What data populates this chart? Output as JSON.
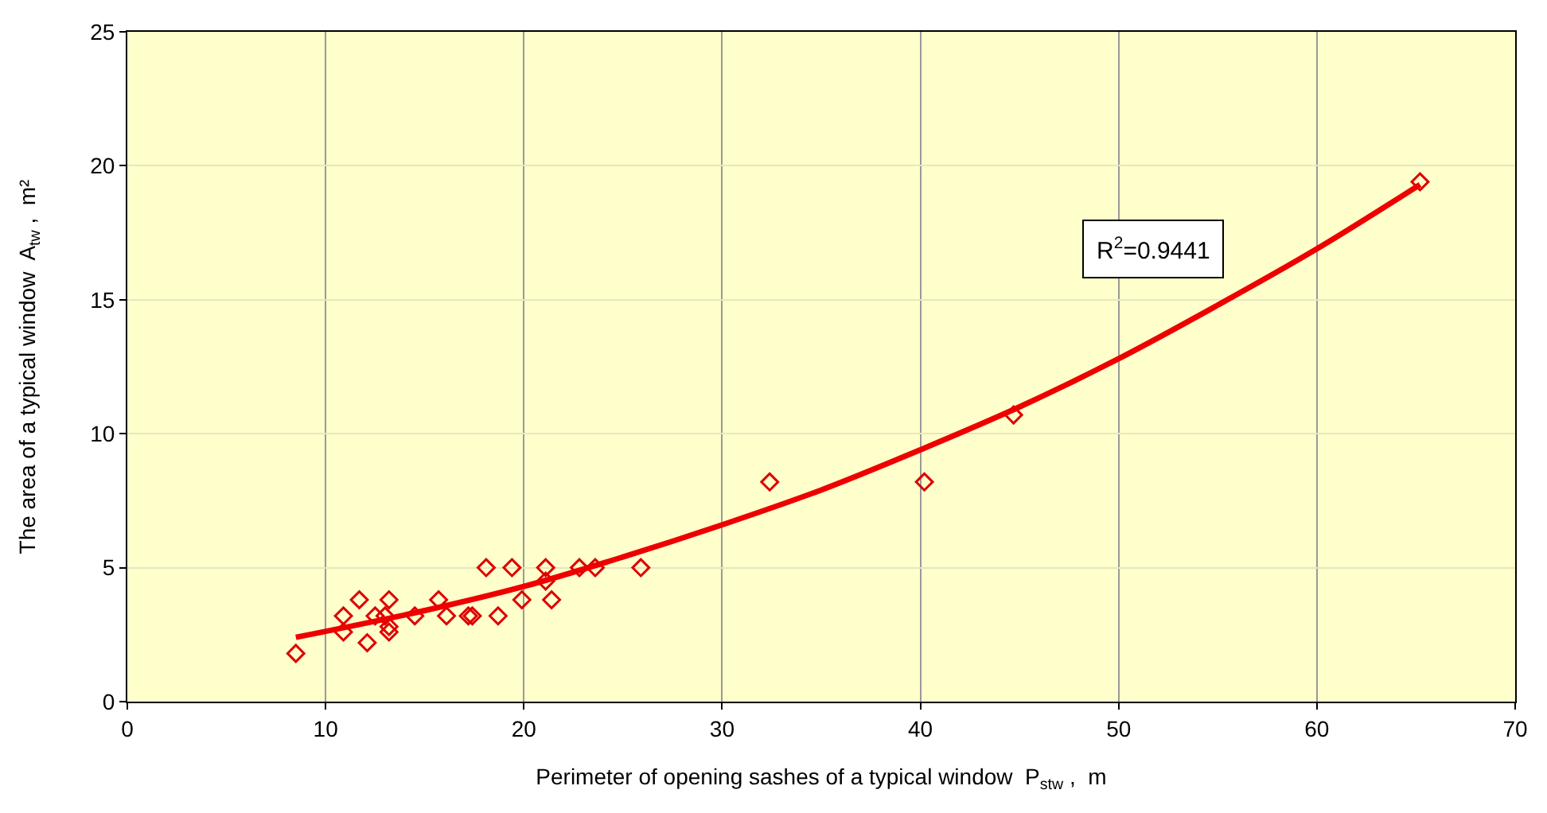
{
  "chart_data": {
    "type": "scatter",
    "xlabel": "Perimeter of opening sashes of a typical window  P$_{stw}$ ,  m",
    "ylabel": "The area of a typical window  A$_{tw}$ ,  m²",
    "annotations": [
      "R$^{2}$=0.9441"
    ],
    "x": [
      8.5,
      10.9,
      10.9,
      11.7,
      12.1,
      12.5,
      13.0,
      13.2,
      13.2,
      13.2,
      14.5,
      15.7,
      16.1,
      17.2,
      17.4,
      18.1,
      18.7,
      19.4,
      19.9,
      21.1,
      21.1,
      21.4,
      22.8,
      23.6,
      25.9,
      32.4,
      40.2,
      44.7,
      65.2
    ],
    "series": [
      {
        "color": "#dd0000",
        "marker": "diamond",
        "values": [
          1.8,
          3.2,
          2.6,
          3.8,
          2.2,
          3.2,
          3.2,
          3.8,
          2.6,
          2.8,
          3.2,
          3.8,
          3.2,
          3.2,
          3.2,
          5.0,
          3.2,
          5.0,
          3.8,
          5.0,
          4.5,
          3.8,
          5.0,
          5.0,
          5.0,
          8.2,
          8.2,
          10.7,
          19.4
        ]
      },
      {
        "type": "line",
        "color": "#ee0000",
        "marker": "none",
        "line_style": "solid",
        "x": [
          8.5,
          15,
          20,
          25,
          30,
          35,
          40,
          45,
          50,
          55,
          60,
          65.2
        ],
        "values": [
          2.4,
          3.4,
          4.3,
          5.4,
          6.6,
          7.9,
          9.4,
          11.0,
          12.8,
          14.8,
          16.9,
          19.3
        ]
      }
    ],
    "xlim": [
      0,
      70
    ],
    "xticks": [
      0,
      10,
      20,
      30,
      40,
      50,
      60,
      70
    ],
    "ylim": [
      0,
      25
    ],
    "yticks": [
      0,
      5,
      10,
      15,
      20,
      25
    ],
    "grid": true
  }
}
